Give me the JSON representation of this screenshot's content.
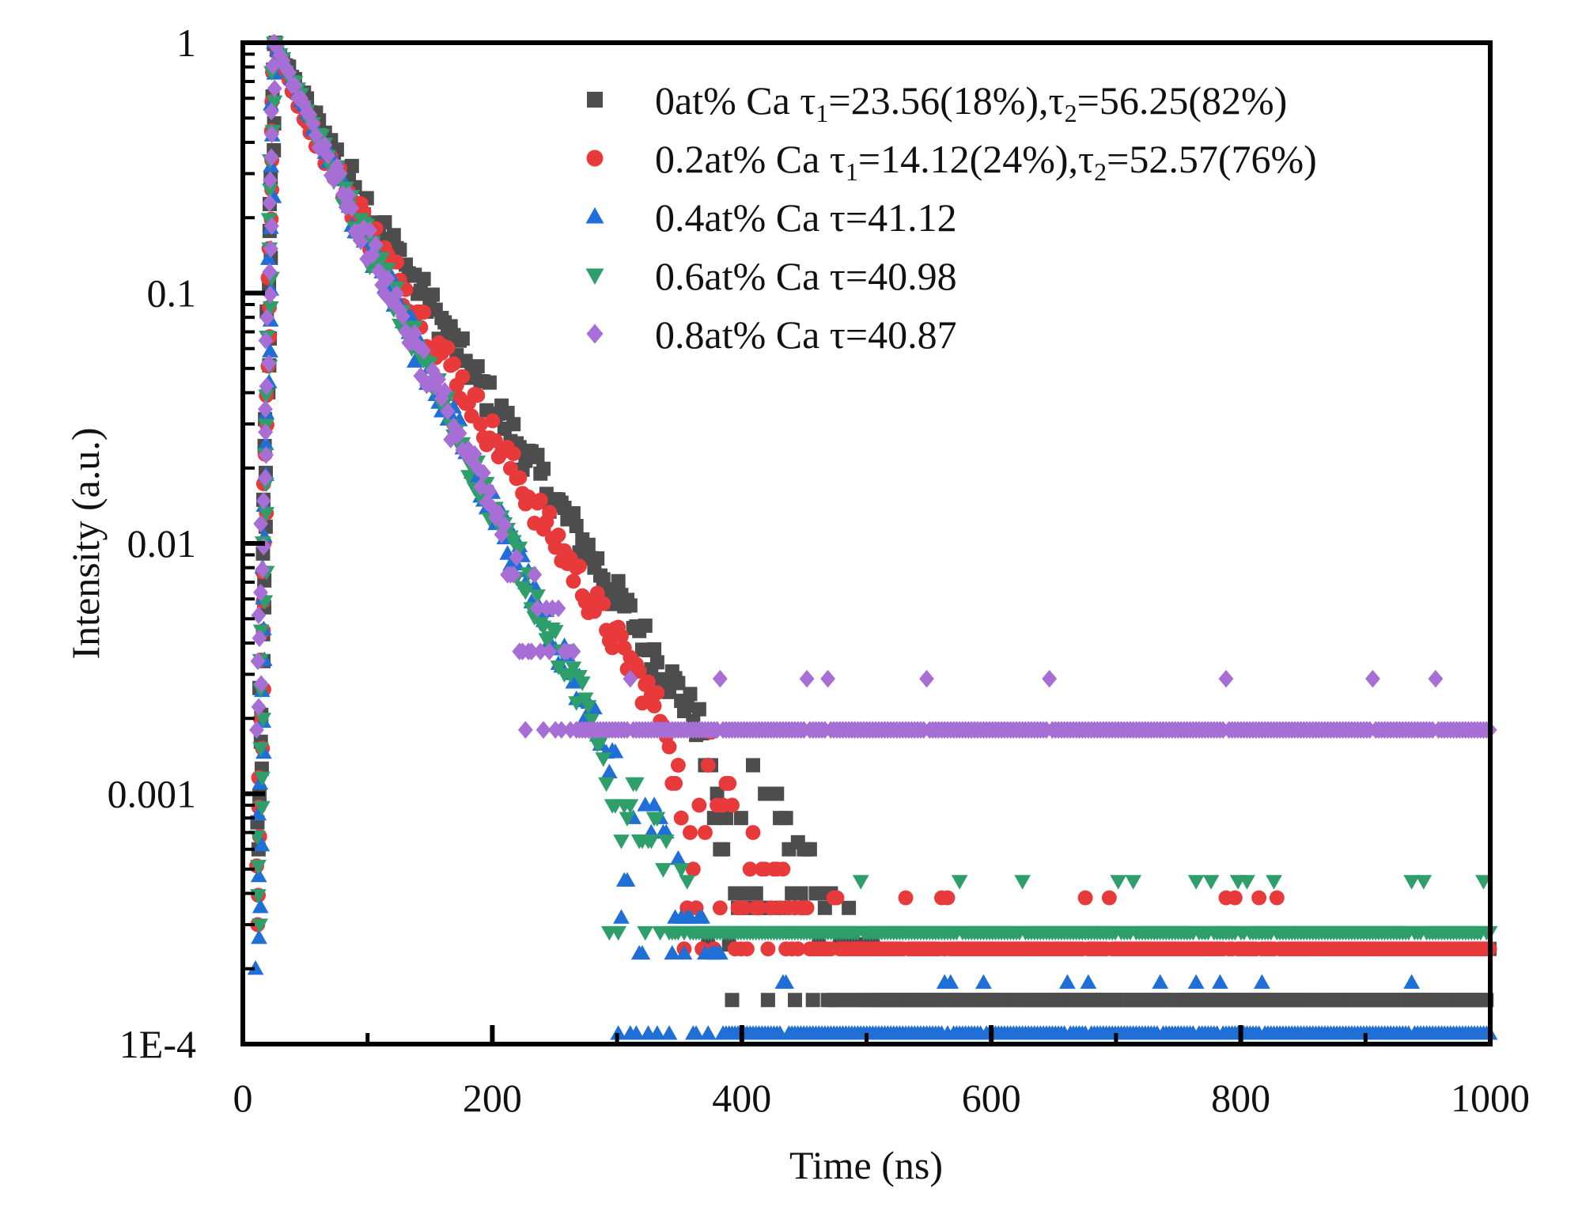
{
  "chart_data": {
    "type": "scatter",
    "title": "",
    "xlabel": "Time (ns)",
    "ylabel": "Intensity (a.u.)",
    "xscale": "linear",
    "yscale": "log",
    "xlim": [
      0,
      1000
    ],
    "ylim": [
      0.0001,
      1
    ],
    "grid": false,
    "legend_position": "top-right",
    "x_ticks": [
      {
        "value": 0,
        "label": "0"
      },
      {
        "value": 200,
        "label": "200"
      },
      {
        "value": 400,
        "label": "400"
      },
      {
        "value": 600,
        "label": "600"
      },
      {
        "value": 800,
        "label": "800"
      },
      {
        "value": 1000,
        "label": "1000"
      }
    ],
    "y_ticks": [
      {
        "value": 1,
        "label": "1"
      },
      {
        "value": 0.1,
        "label": "0.1"
      },
      {
        "value": 0.01,
        "label": "0.01"
      },
      {
        "value": 0.001,
        "label": "0.001"
      },
      {
        "value": 0.0001,
        "label": "1E-4"
      }
    ],
    "series": [
      {
        "name": "0at% Ca",
        "label_main": "0at% Ca   τ",
        "label_parts": [
          "0at% Ca   τ",
          "1",
          "=23.56(18%),τ",
          "2",
          "=56.25(82%)"
        ],
        "marker": "square",
        "color": "#4d4d4d",
        "tau1": 23.56,
        "w1": 0.18,
        "tau2": 56.25,
        "w2": 0.82,
        "peak_time": 25,
        "rise_from": 0.0006,
        "floors": [
          0.00015,
          0.00025,
          0.00035,
          0.0004,
          0.0006,
          0.0008,
          0.001,
          0.0013
        ]
      },
      {
        "name": "0.2at% Ca",
        "label_parts": [
          "0.2at% Ca τ",
          "1",
          "=14.12(24%),τ",
          "2",
          "=52.57(76%)"
        ],
        "marker": "circle",
        "color": "#e8393b",
        "tau1": 14.12,
        "w1": 0.24,
        "tau2": 52.57,
        "w2": 0.76,
        "peak_time": 25,
        "rise_from": 0.0003,
        "floors": [
          0.00024,
          0.00035,
          0.0005,
          0.0007,
          0.0009,
          0.0011,
          0.0013
        ]
      },
      {
        "name": "0.4at% Ca",
        "label_parts": [
          "0.4at% Ca τ=41.12"
        ],
        "marker": "triangle-up",
        "color": "#1f6fd6",
        "tau": 41.12,
        "peak_time": 25,
        "rise_from": 0.0002,
        "floors": [
          0.00011,
          0.00023,
          0.00032,
          0.00045,
          0.00055,
          0.0007,
          0.0008,
          0.0009
        ]
      },
      {
        "name": "0.6at% Ca",
        "label_parts": [
          "0.6at% Ca τ=40.98"
        ],
        "marker": "triangle-down",
        "color": "#2e9e6a",
        "tau": 40.98,
        "peak_time": 25,
        "rise_from": 0.0003,
        "floors": [
          0.00028,
          0.0005,
          0.00065,
          0.0008,
          0.0009,
          0.0011
        ]
      },
      {
        "name": "0.8at% Ca",
        "label_parts": [
          "0.8at% Ca τ=40.87"
        ],
        "marker": "diamond",
        "color": "#a76fd6",
        "tau": 40.87,
        "peak_time": 25,
        "rise_from": 0.0018,
        "floors": [
          0.0018,
          0.0037,
          0.0055,
          0.0075
        ]
      }
    ]
  }
}
